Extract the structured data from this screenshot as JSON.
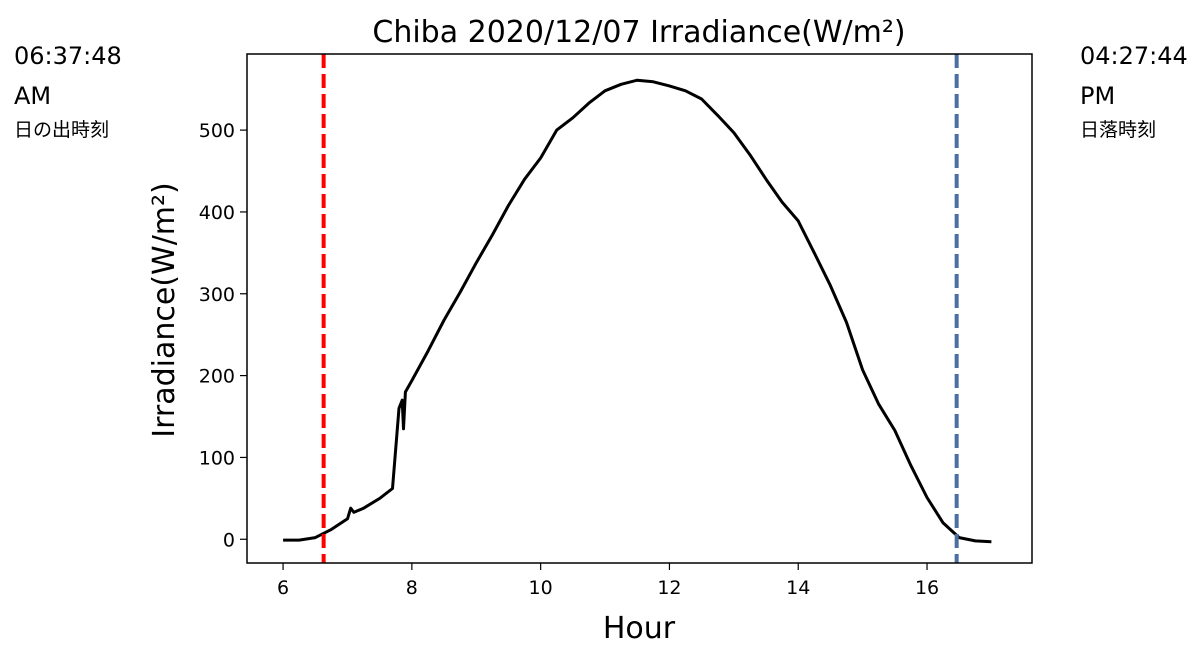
{
  "chart_data": {
    "type": "line",
    "title": "Chiba 2020/12/07 Irradiance(W/m²)",
    "xlabel": "Hour",
    "ylabel": "Irradiance(W/m²)",
    "x": [
      6.0,
      6.25,
      6.5,
      6.75,
      7.0,
      7.05,
      7.1,
      7.25,
      7.5,
      7.7,
      7.8,
      7.85,
      7.87,
      7.9,
      8.0,
      8.25,
      8.5,
      8.75,
      9.0,
      9.25,
      9.5,
      9.75,
      10.0,
      10.25,
      10.5,
      10.75,
      11.0,
      11.25,
      11.5,
      11.75,
      12.0,
      12.25,
      12.5,
      12.75,
      13.0,
      13.25,
      13.5,
      13.75,
      14.0,
      14.25,
      14.5,
      14.75,
      15.0,
      15.25,
      15.5,
      15.75,
      16.0,
      16.25,
      16.5,
      16.75,
      17.0
    ],
    "series": [
      {
        "color": "#000000",
        "values": [
          -1,
          -1,
          2,
          12,
          25,
          38,
          33,
          38,
          50,
          62,
          160,
          170,
          135,
          180,
          194,
          230,
          268,
          302,
          338,
          372,
          408,
          440,
          466,
          500,
          515,
          533,
          548,
          556,
          561,
          559,
          554,
          548,
          538,
          518,
          497,
          470,
          440,
          412,
          389,
          350,
          310,
          265,
          207,
          165,
          133,
          90,
          51,
          20,
          2,
          -2,
          -3
        ]
      }
    ],
    "vlines": [
      {
        "x": 6.63,
        "color": "#ff0000"
      },
      {
        "x": 16.46,
        "color": "#4a6fa0"
      }
    ],
    "annotations": {
      "sunrise": [
        "06:37:48",
        "AM",
        "日の出時刻"
      ],
      "sunset": [
        "04:27:44",
        "PM",
        "日落時刻"
      ]
    },
    "xlim": [
      5.44,
      17.63
    ],
    "xticks": [
      6,
      8,
      10,
      12,
      14,
      16
    ],
    "ylim": [
      -29,
      593
    ],
    "yticks": [
      0,
      100,
      200,
      300,
      400,
      500
    ]
  }
}
